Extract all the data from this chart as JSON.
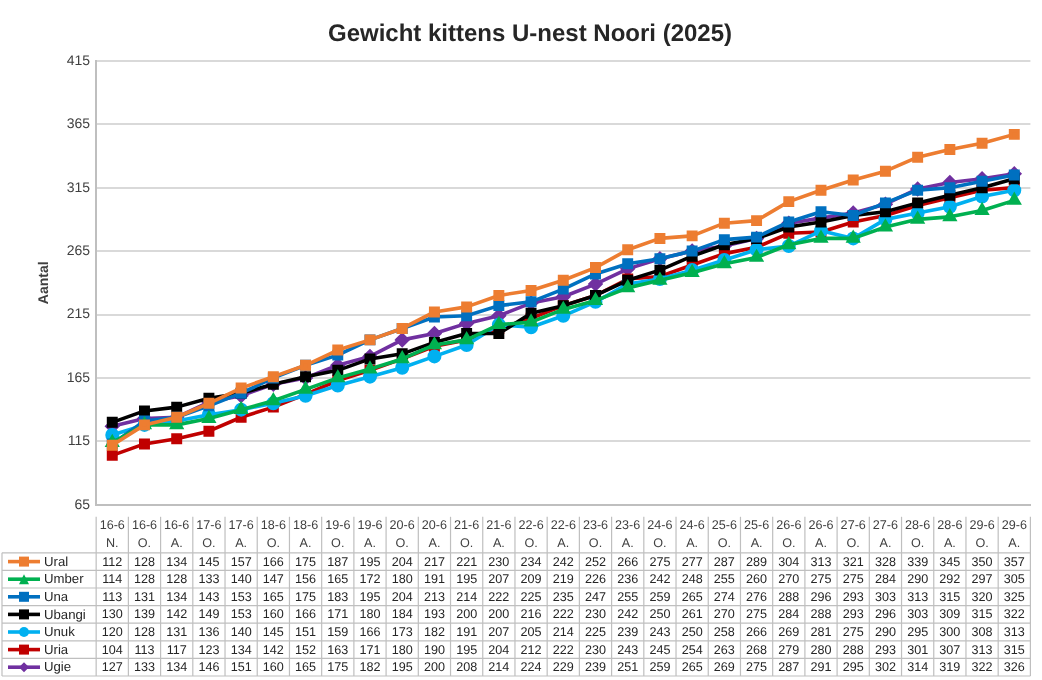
{
  "chart_data": {
    "type": "line",
    "title": "Gewicht kittens U-nest Noori (2025)",
    "ylabel": "Aantal",
    "categories": [
      "16-6 N.",
      "16-6 O.",
      "16-6 A.",
      "17-6 O.",
      "17-6 A.",
      "18-6 O.",
      "18-6 A.",
      "19-6 O.",
      "19-6 A.",
      "20-6 O.",
      "20-6 A.",
      "21-6 O.",
      "21-6 A.",
      "22-6 O.",
      "22-6 A.",
      "23-6 O.",
      "23-6 A.",
      "24-6 O.",
      "24-6 A.",
      "25-6 O.",
      "25-6 A.",
      "26-6 O.",
      "26-6 A.",
      "27-6 O.",
      "27-6 A.",
      "28-6 O.",
      "28-6 A.",
      "29-6 O.",
      "29-6 A."
    ],
    "ylim": [
      65,
      415
    ],
    "yticks": [
      65,
      115,
      165,
      215,
      265,
      315,
      365,
      415
    ],
    "grid": "y",
    "legend": "bottom",
    "data_labels": true,
    "series": [
      {
        "name": "Ural",
        "color": "#ed7d31",
        "marker": "square",
        "values": [
          112,
          128,
          134,
          145,
          157,
          166,
          175,
          187,
          195,
          204,
          217,
          221,
          230,
          234,
          242,
          252,
          266,
          275,
          277,
          287,
          289,
          304,
          313,
          321,
          328,
          339,
          345,
          350,
          357
        ]
      },
      {
        "name": "Umber",
        "color": "#00b050",
        "marker": "triangle",
        "values": [
          114,
          128,
          128,
          133,
          140,
          147,
          156,
          165,
          172,
          180,
          191,
          195,
          207,
          209,
          219,
          226,
          236,
          242,
          248,
          255,
          260,
          270,
          275,
          275,
          284,
          290,
          292,
          297,
          305
        ]
      },
      {
        "name": "Una",
        "color": "#0070c0",
        "marker": "square",
        "values": [
          113,
          131,
          134,
          143,
          153,
          165,
          175,
          183,
          195,
          204,
          213,
          214,
          222,
          225,
          235,
          247,
          255,
          259,
          265,
          274,
          276,
          288,
          296,
          293,
          303,
          313,
          315,
          320,
          325
        ]
      },
      {
        "name": "Ubangi",
        "color": "#000000",
        "marker": "square",
        "values": [
          130,
          139,
          142,
          149,
          153,
          160,
          166,
          171,
          180,
          184,
          193,
          200,
          200,
          216,
          222,
          230,
          242,
          250,
          261,
          270,
          275,
          284,
          288,
          293,
          296,
          303,
          309,
          315,
          322
        ]
      },
      {
        "name": "Unuk",
        "color": "#00b0f0",
        "marker": "circle",
        "values": [
          120,
          128,
          131,
          136,
          140,
          145,
          151,
          159,
          166,
          173,
          182,
          191,
          207,
          205,
          214,
          225,
          239,
          243,
          250,
          258,
          266,
          269,
          281,
          275,
          290,
          295,
          300,
          308,
          313
        ]
      },
      {
        "name": "Uria",
        "color": "#c00000",
        "marker": "square",
        "values": [
          104,
          113,
          117,
          123,
          134,
          142,
          152,
          163,
          171,
          180,
          190,
          195,
          204,
          212,
          222,
          230,
          243,
          245,
          254,
          263,
          268,
          279,
          280,
          288,
          293,
          301,
          307,
          313,
          315
        ]
      },
      {
        "name": "Ugie",
        "color": "#7030a0",
        "marker": "diamond",
        "values": [
          127,
          133,
          134,
          146,
          151,
          160,
          165,
          175,
          182,
          195,
          200,
          208,
          214,
          224,
          229,
          239,
          251,
          259,
          265,
          269,
          275,
          287,
          291,
          295,
          302,
          314,
          319,
          322,
          326
        ]
      }
    ]
  }
}
